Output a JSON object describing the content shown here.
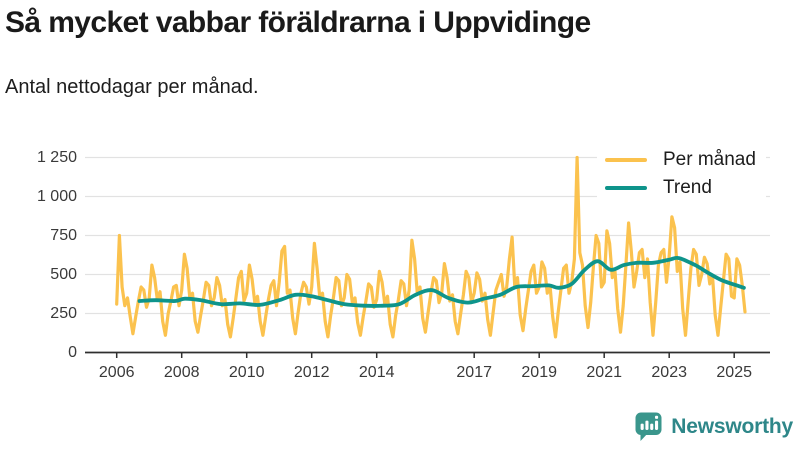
{
  "header": {
    "title": "Så mycket vabbar föräldrarna i Uppvidinge",
    "subtitle": "Antal nettodagar per månad."
  },
  "legend": {
    "items": [
      {
        "label": "Per månad",
        "color": "#FBC24E"
      },
      {
        "label": "Trend",
        "color": "#0E948B"
      }
    ]
  },
  "footer": {
    "brand": "Newsworthy",
    "brand_color": "#2E8789",
    "logo_icon": "bar-chart-speech-bubble"
  },
  "chart_data": {
    "type": "line",
    "title": "Så mycket vabbar föräldrarna i Uppvidinge",
    "subtitle": "Antal nettodagar per månad.",
    "ylabel": "",
    "xlabel": "",
    "ylim": [
      0,
      1250
    ],
    "xlim": [
      2005.8,
      2025.6
    ],
    "grid": "horizontal",
    "legend_position": "top-right",
    "colors": {
      "grid": "#e2e2e2",
      "axis": "#2f2f2f",
      "tick_text": "#3a3a3a"
    },
    "y_ticks": [
      {
        "v": 0,
        "label": "0"
      },
      {
        "v": 250,
        "label": "250"
      },
      {
        "v": 500,
        "label": "500"
      },
      {
        "v": 750,
        "label": "750"
      },
      {
        "v": 1000,
        "label": "1 000"
      },
      {
        "v": 1250,
        "label": "1 250"
      }
    ],
    "x_ticks": [
      2006,
      2008,
      2010,
      2012,
      2014,
      2017,
      2019,
      2021,
      2023,
      2025
    ],
    "x_start_year": 2006,
    "x_step_months": 1,
    "series": [
      {
        "name": "Per månad",
        "color": "#FBC24E",
        "width": 3.2,
        "values": [
          310,
          750,
          420,
          300,
          350,
          230,
          120,
          230,
          330,
          420,
          400,
          290,
          350,
          560,
          480,
          340,
          390,
          200,
          110,
          250,
          330,
          420,
          430,
          300,
          400,
          630,
          540,
          350,
          380,
          200,
          130,
          240,
          340,
          450,
          430,
          300,
          350,
          480,
          430,
          300,
          340,
          180,
          100,
          220,
          350,
          480,
          520,
          330,
          380,
          560,
          470,
          320,
          360,
          200,
          110,
          230,
          340,
          430,
          460,
          300,
          450,
          650,
          680,
          380,
          400,
          220,
          120,
          260,
          380,
          450,
          420,
          310,
          420,
          700,
          540,
          350,
          380,
          200,
          100,
          240,
          350,
          480,
          460,
          300,
          350,
          500,
          470,
          320,
          350,
          190,
          110,
          230,
          330,
          440,
          420,
          290,
          340,
          520,
          450,
          310,
          360,
          180,
          100,
          240,
          340,
          460,
          440,
          300,
          400,
          720,
          600,
          380,
          420,
          220,
          130,
          260,
          380,
          480,
          460,
          320,
          380,
          570,
          480,
          330,
          370,
          200,
          120,
          250,
          370,
          520,
          480,
          320,
          380,
          510,
          470,
          330,
          380,
          210,
          110,
          260,
          400,
          450,
          500,
          360,
          420,
          600,
          740,
          420,
          480,
          240,
          140,
          280,
          400,
          520,
          560,
          380,
          420,
          580,
          540,
          380,
          430,
          230,
          100,
          260,
          400,
          540,
          560,
          380,
          450,
          600,
          1250,
          640,
          560,
          300,
          160,
          320,
          550,
          750,
          700,
          420,
          450,
          780,
          700,
          480,
          520,
          280,
          130,
          300,
          560,
          830,
          650,
          420,
          520,
          640,
          660,
          480,
          600,
          320,
          110,
          320,
          560,
          640,
          660,
          450,
          620,
          870,
          800,
          520,
          580,
          280,
          110,
          330,
          540,
          660,
          630,
          430,
          500,
          610,
          570,
          440,
          490,
          240,
          110,
          290,
          460,
          630,
          600,
          360,
          350,
          600,
          560,
          430,
          260
        ]
      },
      {
        "name": "Trend",
        "color": "#0E948B",
        "width": 3.8,
        "points": [
          [
            2006.7,
            330
          ],
          [
            2007.2,
            335
          ],
          [
            2007.8,
            330
          ],
          [
            2008.1,
            345
          ],
          [
            2008.6,
            335
          ],
          [
            2009.2,
            310
          ],
          [
            2009.8,
            315
          ],
          [
            2010.4,
            305
          ],
          [
            2011.0,
            335
          ],
          [
            2011.5,
            370
          ],
          [
            2012.0,
            360
          ],
          [
            2012.5,
            335
          ],
          [
            2013.0,
            310
          ],
          [
            2013.6,
            300
          ],
          [
            2014.2,
            300
          ],
          [
            2014.7,
            310
          ],
          [
            2015.2,
            370
          ],
          [
            2015.7,
            400
          ],
          [
            2016.2,
            350
          ],
          [
            2016.8,
            320
          ],
          [
            2017.3,
            345
          ],
          [
            2017.8,
            370
          ],
          [
            2018.3,
            420
          ],
          [
            2018.8,
            425
          ],
          [
            2019.3,
            430
          ],
          [
            2019.6,
            415
          ],
          [
            2020.0,
            440
          ],
          [
            2020.4,
            530
          ],
          [
            2020.8,
            585
          ],
          [
            2021.2,
            530
          ],
          [
            2021.6,
            560
          ],
          [
            2022.0,
            575
          ],
          [
            2022.5,
            575
          ],
          [
            2023.0,
            595
          ],
          [
            2023.3,
            605
          ],
          [
            2023.8,
            560
          ],
          [
            2024.2,
            510
          ],
          [
            2024.6,
            465
          ],
          [
            2025.0,
            435
          ],
          [
            2025.3,
            415
          ]
        ]
      }
    ]
  }
}
